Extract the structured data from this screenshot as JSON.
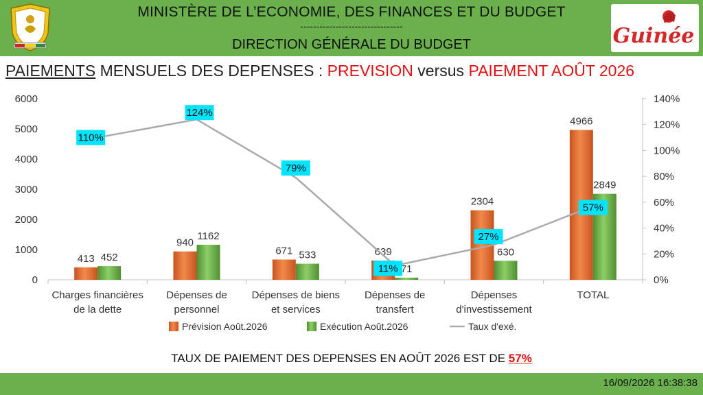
{
  "header": {
    "ministry_line1": "MINISTÈRE DE L’ECONOMIE, DES FINANCES ET DU BUDGET",
    "separator": "--------------------------------",
    "ministry_line2": "DIRECTION GÉNÉRALE DU BUDGET",
    "logo_text": "Guinée",
    "bar_color": "#6ab04c"
  },
  "title": {
    "part1": "PAIEMENTS",
    "part2": " MENSUELS DES DEPENSES : ",
    "part3": "PREVISION",
    "part4": " versus ",
    "part5": "PAIEMENT AOÛT 2026"
  },
  "chart_data": {
    "type": "bar",
    "categories": [
      [
        "Charges financières",
        "de la dette"
      ],
      [
        "Dépenses de",
        "personnel"
      ],
      [
        "Dépenses de biens",
        "et services"
      ],
      [
        "Dépenses de",
        "transfert"
      ],
      [
        "Dépenses",
        "d'investissement"
      ],
      [
        "TOTAL"
      ]
    ],
    "series": [
      {
        "name": "Prévision Août.2026",
        "color": "#e8763a",
        "values": [
          413,
          940,
          671,
          639,
          2304,
          4966
        ]
      },
      {
        "name": "Exécution Août.2026",
        "color": "#6ab04c",
        "values": [
          452,
          1162,
          533,
          71,
          630,
          2849
        ]
      }
    ],
    "line": {
      "name": "Taux d'exé.",
      "color": "#aaaaaa",
      "values": [
        1.1,
        1.24,
        0.79,
        0.11,
        0.27,
        0.57
      ],
      "labels": [
        "110%",
        "124%",
        "79%",
        "11%",
        "27%",
        "57%"
      ]
    },
    "y_left": {
      "min": 0,
      "max": 6000,
      "ticks": [
        "0",
        "1000",
        "2000",
        "3000",
        "4000",
        "5000",
        "6000"
      ]
    },
    "y_right": {
      "min": 0,
      "max": 1.4,
      "ticks": [
        "0%",
        "20%",
        "40%",
        "60%",
        "80%",
        "100%",
        "120%",
        "140%"
      ]
    },
    "legend_position": "bottom"
  },
  "footer": {
    "message": "TAUX DE PAIEMENT DES DEPENSES EN AOÛT 2026 EST DE ",
    "rate": "57%",
    "timestamp": "16/09/2026 16:38:38"
  }
}
